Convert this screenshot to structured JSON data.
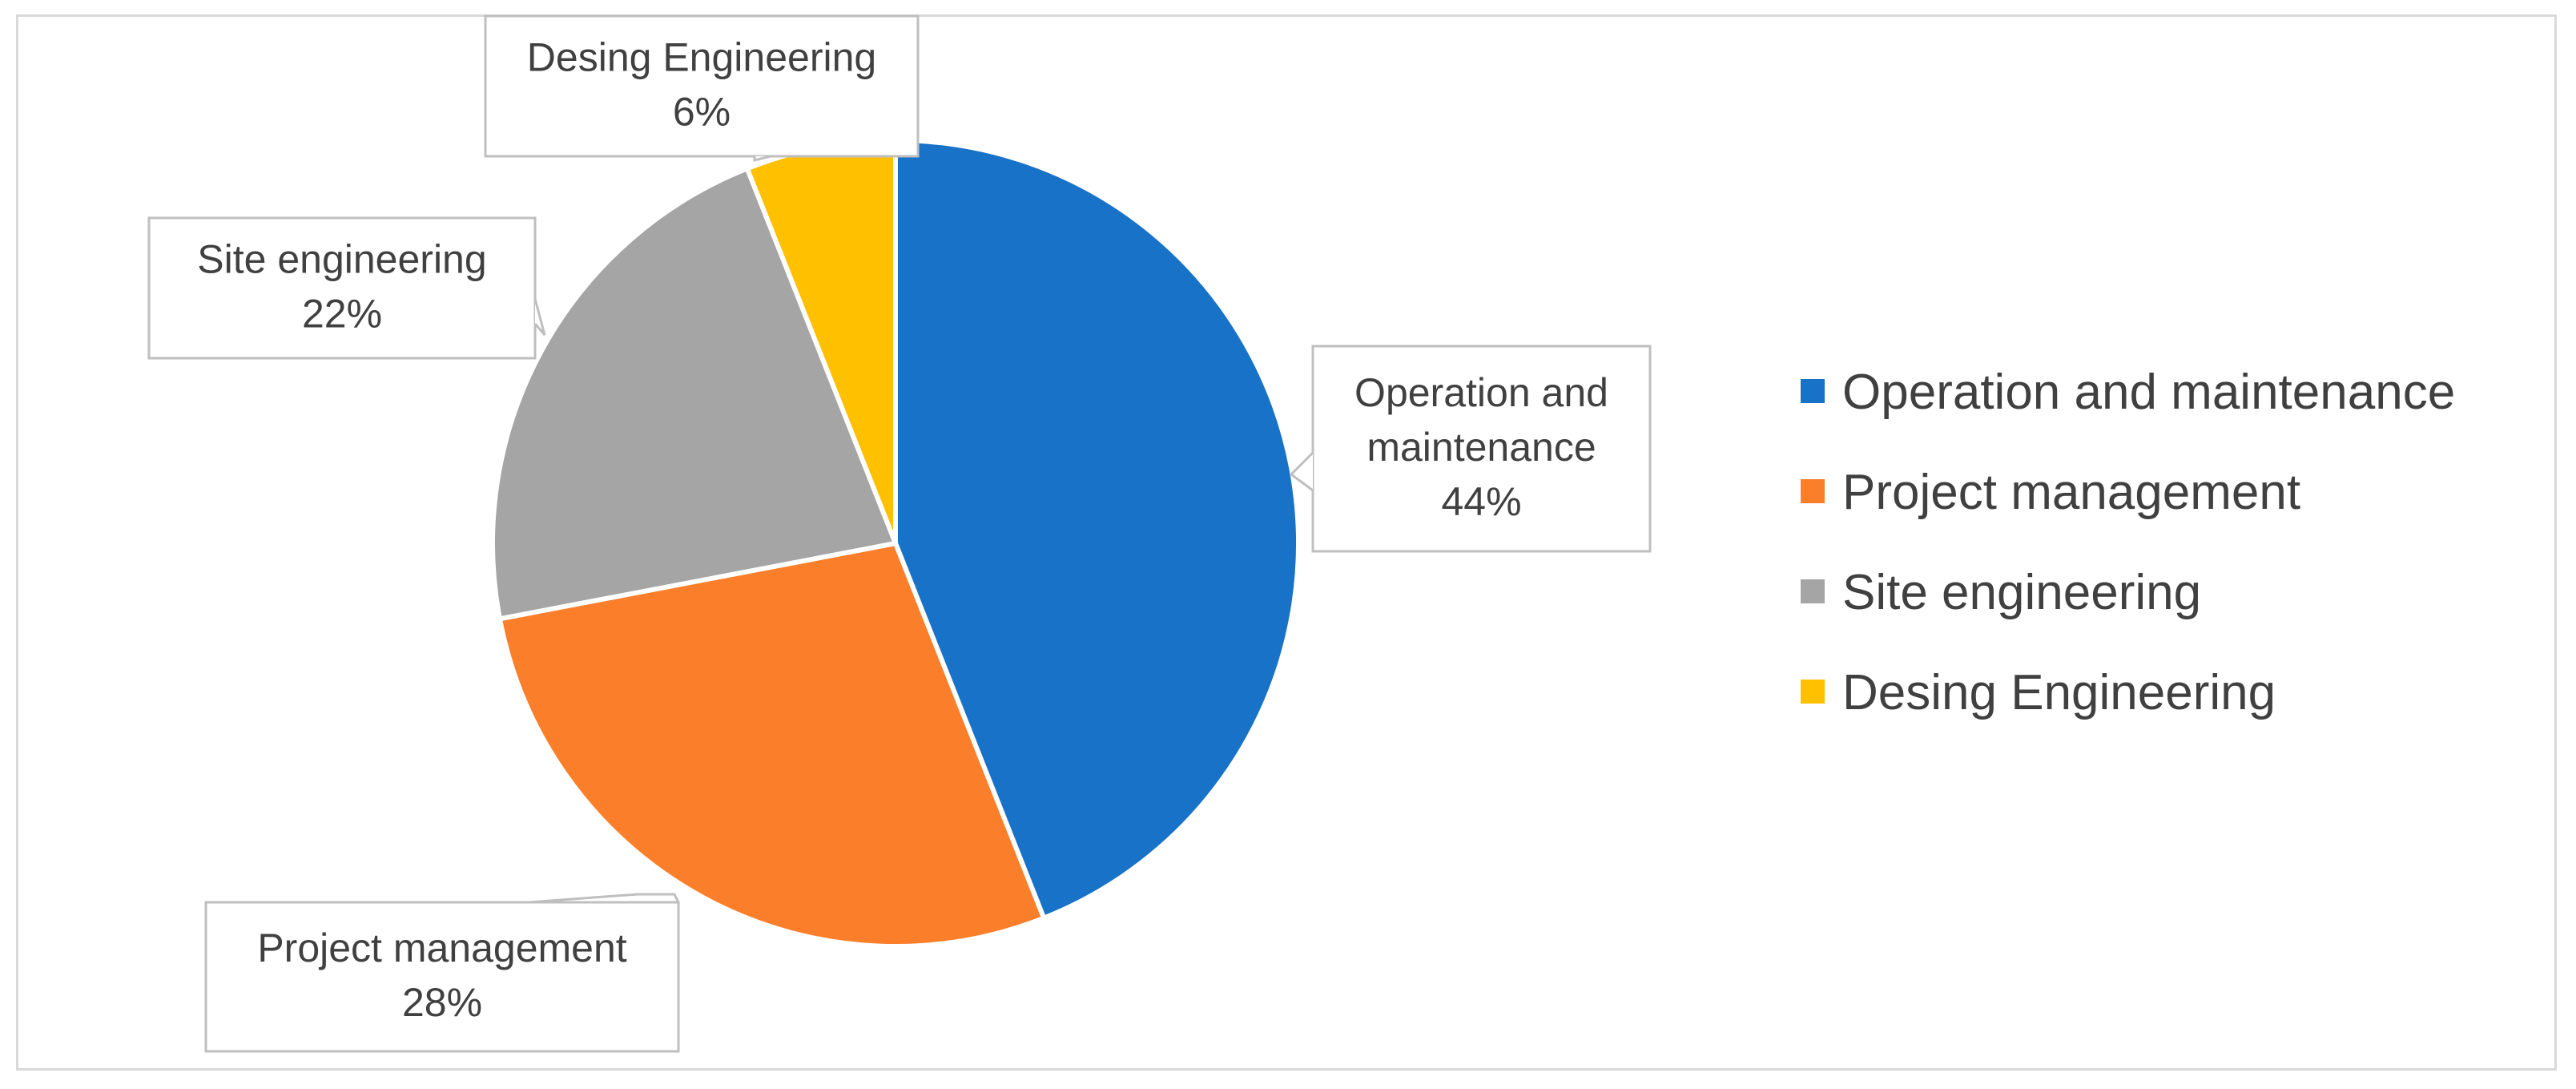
{
  "chart_data": {
    "type": "pie",
    "title": "",
    "start_angle": "12 o'clock, clockwise",
    "legend_position": "right",
    "slices": [
      {
        "label": "Operation and maintenance",
        "value": 44,
        "value_label": "44%",
        "color": "#1872C8"
      },
      {
        "label": "Project management",
        "value": 28,
        "value_label": "28%",
        "color": "#FB7F2A"
      },
      {
        "label": "Site engineering",
        "value": 22,
        "value_label": "22%",
        "color": "#A5A5A5"
      },
      {
        "label": "Desing Engineering",
        "value": 6,
        "value_label": "6%",
        "color": "#FFC000"
      }
    ],
    "callouts": [
      {
        "lines": [
          "Operation and",
          "maintenance",
          "44%"
        ]
      },
      {
        "lines": [
          "Project management",
          "28%"
        ]
      },
      {
        "lines": [
          "Site engineering",
          "22%"
        ]
      },
      {
        "lines": [
          "Desing Engineering",
          "6%"
        ]
      }
    ],
    "legend": [
      "Operation and maintenance",
      "Project management",
      "Site engineering",
      "Desing Engineering"
    ]
  }
}
